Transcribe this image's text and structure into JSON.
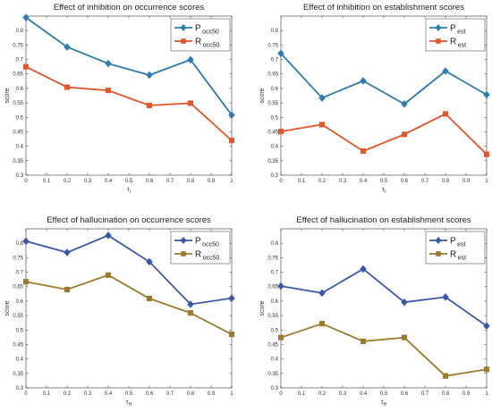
{
  "chart_data": [
    {
      "type": "line",
      "title": "Effect of inhibition on occurrence scores",
      "xlabel": "τ",
      "xlabel_sub": "I",
      "ylabel": "score",
      "x": [
        0,
        0.2,
        0.4,
        0.6,
        0.8,
        1
      ],
      "xticks": [
        "0",
        "0.1",
        "0.2",
        "0.3",
        "0.4",
        "0.5",
        "0.6",
        "0.7",
        "0.8",
        "0.9",
        "1"
      ],
      "yticks": [
        "0.3",
        "0.35",
        "0.4",
        "0.45",
        "0.5",
        "0.55",
        "0.6",
        "0.65",
        "0.7",
        "0.75",
        "0.8"
      ],
      "xlim": [
        0,
        1
      ],
      "ylim": [
        0.3,
        0.85
      ],
      "legend_position": "top-right",
      "series": [
        {
          "name": "P",
          "name_sub": "occ50",
          "color": "#2E7BAF",
          "marker": "diamond",
          "values": [
            0.845,
            0.743,
            0.686,
            0.646,
            0.699,
            0.508
          ]
        },
        {
          "name": "R",
          "name_sub": "occ50",
          "color": "#E0572A",
          "marker": "square",
          "values": [
            0.675,
            0.604,
            0.593,
            0.541,
            0.549,
            0.42
          ]
        }
      ]
    },
    {
      "type": "line",
      "title": "Effect of inhibition on establishment scores",
      "xlabel": "τ",
      "xlabel_sub": "I",
      "ylabel": "score",
      "x": [
        0,
        0.2,
        0.4,
        0.6,
        0.8,
        1
      ],
      "xticks": [
        "0",
        "0.1",
        "0.2",
        "0.3",
        "0.4",
        "0.5",
        "0.6",
        "0.7",
        "0.8",
        "0.9",
        "1"
      ],
      "yticks": [
        "0.3",
        "0.35",
        "0.4",
        "0.45",
        "0.5",
        "0.55",
        "0.6",
        "0.65",
        "0.7",
        "0.75",
        "0.8"
      ],
      "xlim": [
        0,
        1
      ],
      "ylim": [
        0.3,
        0.85
      ],
      "legend_position": "top-right",
      "series": [
        {
          "name": "P",
          "name_sub": "est",
          "color": "#2E7BAF",
          "marker": "diamond",
          "values": [
            0.721,
            0.567,
            0.626,
            0.546,
            0.66,
            0.578
          ]
        },
        {
          "name": "R",
          "name_sub": "est",
          "color": "#E0572A",
          "marker": "square",
          "values": [
            0.451,
            0.475,
            0.383,
            0.441,
            0.512,
            0.372
          ]
        }
      ]
    },
    {
      "type": "line",
      "title": "Effect of hallucination on occurrence scores",
      "xlabel": "τ",
      "xlabel_sub": "H",
      "ylabel": "score",
      "x": [
        0,
        0.2,
        0.4,
        0.6,
        0.8,
        1
      ],
      "xticks": [
        "0",
        "0.1",
        "0.2",
        "0.3",
        "0.4",
        "0.5",
        "0.6",
        "0.7",
        "0.8",
        "0.9",
        "1"
      ],
      "yticks": [
        "0.3",
        "0.35",
        "0.4",
        "0.45",
        "0.5",
        "0.55",
        "0.6",
        "0.65",
        "0.7",
        "0.75",
        "0.8"
      ],
      "xlim": [
        0,
        1
      ],
      "ylim": [
        0.3,
        0.85
      ],
      "legend_position": "top-right",
      "series": [
        {
          "name": "P",
          "name_sub": "occ50",
          "color": "#3A56A8",
          "marker": "diamond",
          "values": [
            0.807,
            0.768,
            0.827,
            0.736,
            0.589,
            0.61
          ]
        },
        {
          "name": "R",
          "name_sub": "occ50",
          "color": "#9C7A2C",
          "marker": "square",
          "values": [
            0.667,
            0.64,
            0.69,
            0.609,
            0.559,
            0.485
          ]
        }
      ]
    },
    {
      "type": "line",
      "title": "Effect of hallucination on establishment scores",
      "xlabel": "τ",
      "xlabel_sub": "H",
      "ylabel": "score",
      "x": [
        0,
        0.2,
        0.4,
        0.6,
        0.8,
        1
      ],
      "xticks": [
        "0",
        "0.1",
        "0.2",
        "0.3",
        "0.4",
        "0.5",
        "0.6",
        "0.7",
        "0.8",
        "0.9",
        "1"
      ],
      "yticks": [
        "0.3",
        "0.35",
        "0.4",
        "0.45",
        "0.5",
        "0.55",
        "0.6",
        "0.65",
        "0.7",
        "0.75",
        "0.8"
      ],
      "xlim": [
        0,
        1
      ],
      "ylim": [
        0.3,
        0.85
      ],
      "legend_position": "top-right",
      "series": [
        {
          "name": "P",
          "name_sub": "est",
          "color": "#3A56A8",
          "marker": "diamond",
          "values": [
            0.652,
            0.628,
            0.711,
            0.596,
            0.614,
            0.514
          ]
        },
        {
          "name": "R",
          "name_sub": "est",
          "color": "#9C7A2C",
          "marker": "square",
          "values": [
            0.474,
            0.522,
            0.461,
            0.474,
            0.341,
            0.364
          ]
        }
      ]
    }
  ]
}
